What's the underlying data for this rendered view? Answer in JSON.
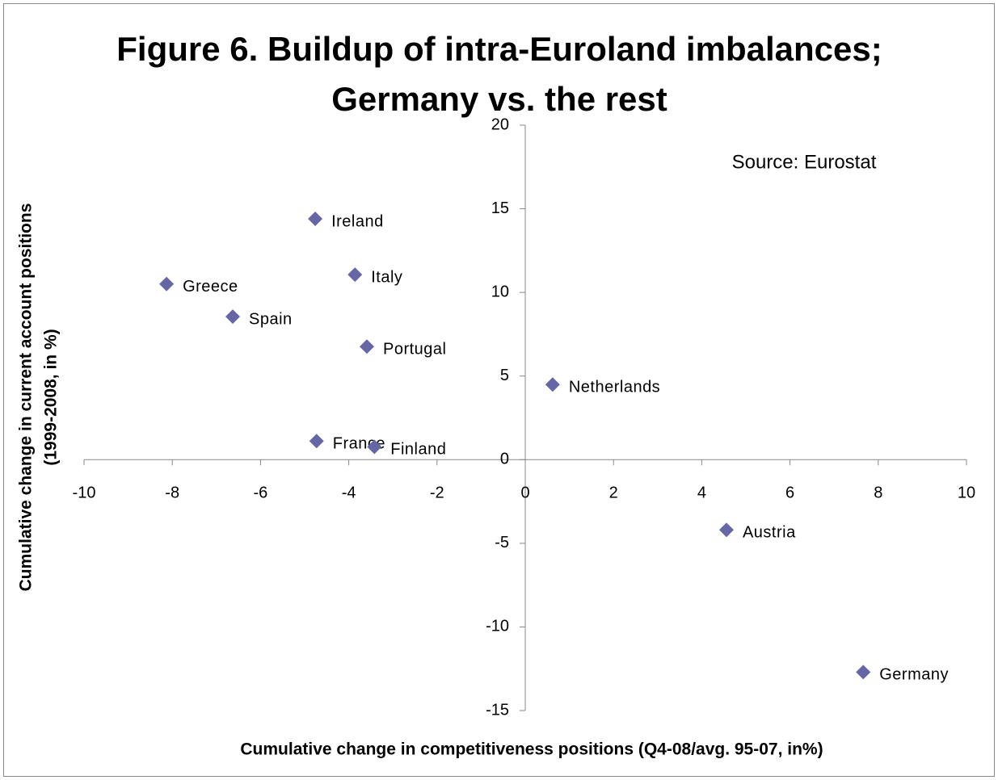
{
  "chart_data": {
    "type": "scatter",
    "title": [
      "Figure 6. Buildup of intra-Euroland imbalances;",
      "Germany vs. the rest"
    ],
    "x_label": "Cumulative change in competitiveness positions (Q4-08/avg. 95-07, in%)",
    "y_label": [
      "Cumulative change in current account positions",
      "(1999-2008, in %)"
    ],
    "annotation": "Source: Eurostat",
    "series": [
      {
        "name": null,
        "color": "#6666a6",
        "labels": [
          "Ireland",
          "Greece",
          "Spain",
          "Italy",
          "Portugal",
          "Netherlands",
          "France",
          "Finland",
          "Austria",
          "Germany"
        ],
        "x": [
          -4.76,
          -8.13,
          -6.63,
          -3.86,
          -3.59,
          0.62,
          -4.73,
          -3.42,
          4.56,
          7.66
        ],
        "values": [
          14.4,
          10.5,
          8.55,
          11.06,
          6.76,
          4.49,
          1.11,
          0.77,
          -4.2,
          -12.7
        ]
      }
    ],
    "xlim": [
      -10,
      10
    ],
    "xticks": [
      -10,
      -8,
      -6,
      -4,
      -2,
      0,
      2,
      4,
      6,
      8,
      10
    ],
    "ylim": [
      -15,
      20
    ],
    "yticks": [
      -15,
      -10,
      -5,
      0,
      5,
      10,
      15,
      20
    ]
  }
}
